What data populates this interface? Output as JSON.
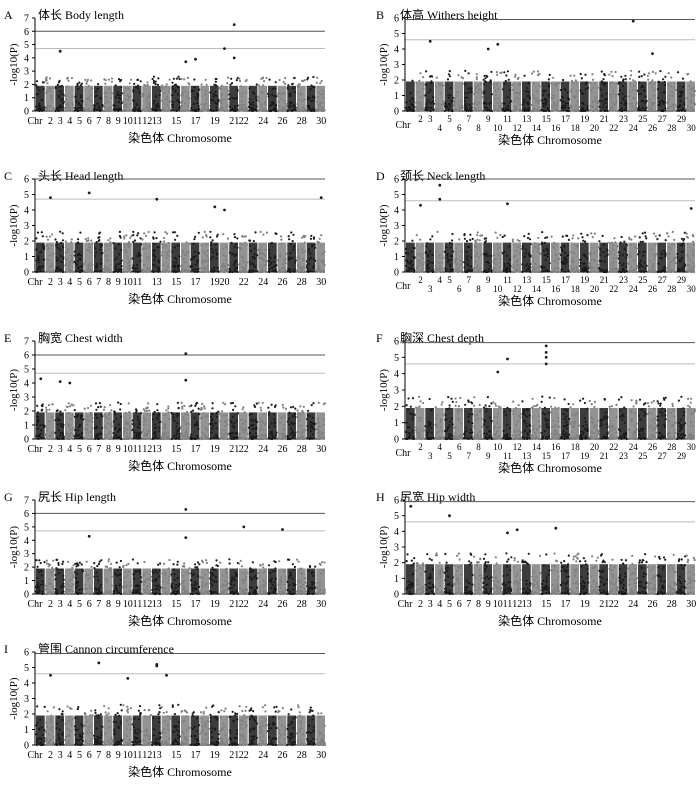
{
  "chart_data": [
    {
      "panel": "A",
      "type": "scatter",
      "title": "体长 Body length",
      "ylabel": "-log10(P)",
      "xlabel": "染色体 Chromosome",
      "ylim": [
        0,
        7
      ],
      "yticks": [
        0,
        1,
        2,
        3,
        4,
        5,
        6,
        7
      ],
      "thresholds": [
        6.0,
        4.7
      ],
      "xticks": [
        "Chr",
        "2",
        "3",
        "4",
        "5",
        "6",
        "7",
        "8",
        "9",
        "10",
        "11",
        "12",
        "13",
        "15",
        "17",
        "19",
        "21",
        "22",
        "24",
        "26",
        "28",
        "30"
      ],
      "peaks": [
        [
          21,
          6.5
        ],
        [
          20,
          4.7
        ],
        [
          3,
          4.5
        ],
        [
          21,
          4.0
        ],
        [
          17,
          3.9
        ],
        [
          16,
          3.7
        ]
      ]
    },
    {
      "panel": "B",
      "type": "scatter",
      "title": "体高 Withers height",
      "ylabel": "-log10(P)",
      "xlabel": "染色体 Chromosome",
      "ylim": [
        0,
        6
      ],
      "yticks": [
        0,
        1,
        2,
        3,
        4,
        5,
        6
      ],
      "thresholds": [
        5.9,
        4.6
      ],
      "xticks": [
        "Chr",
        "2",
        "3",
        "5",
        "7",
        "9",
        "11",
        "13",
        "15",
        "17",
        "19",
        "21",
        "23",
        "25",
        "27",
        "29",
        "4",
        "6",
        "8",
        "10",
        "12",
        "14",
        "16",
        "18",
        "20",
        "22",
        "24",
        "26",
        "28",
        "30"
      ],
      "peaks": [
        [
          24,
          5.8
        ],
        [
          3,
          4.5
        ],
        [
          10,
          4.3
        ],
        [
          9,
          4.0
        ],
        [
          26,
          3.7
        ]
      ]
    },
    {
      "panel": "C",
      "type": "scatter",
      "title": "头长 Head length",
      "ylabel": "-log10(P)",
      "xlabel": "染色体 Chromosome",
      "ylim": [
        0,
        6
      ],
      "yticks": [
        0,
        1,
        2,
        3,
        4,
        5,
        6
      ],
      "thresholds": [
        6.0,
        4.7
      ],
      "xticks": [
        "Chr",
        "2",
        "3",
        "4",
        "5",
        "6",
        "7",
        "8",
        "9",
        "10",
        "11",
        "13",
        "15",
        "17",
        "19",
        "20",
        "22",
        "24",
        "26",
        "28",
        "30"
      ],
      "peaks": [
        [
          6,
          5.1
        ],
        [
          2,
          4.8
        ],
        [
          30,
          4.8
        ],
        [
          13,
          4.7
        ],
        [
          19,
          4.2
        ],
        [
          20,
          4.0
        ]
      ]
    },
    {
      "panel": "D",
      "type": "scatter",
      "title": "颈长 Neck length",
      "ylabel": "-log10(P)",
      "xlabel": "染色体 Chromosome",
      "ylim": [
        0,
        6
      ],
      "yticks": [
        0,
        1,
        2,
        3,
        4,
        5,
        6
      ],
      "thresholds": [
        6.0,
        4.6
      ],
      "xticks": [
        "Chr",
        "2",
        "4",
        "5",
        "7",
        "9",
        "11",
        "13",
        "15",
        "17",
        "19",
        "21",
        "23",
        "25",
        "27",
        "29",
        "3",
        "6",
        "8",
        "10",
        "12",
        "14",
        "16",
        "18",
        "20",
        "22",
        "24",
        "26",
        "28",
        "30"
      ],
      "peaks": [
        [
          4,
          5.6
        ],
        [
          4,
          4.7
        ],
        [
          11,
          4.4
        ],
        [
          2,
          4.3
        ],
        [
          30,
          4.1
        ]
      ]
    },
    {
      "panel": "E",
      "type": "scatter",
      "title": "胸宽 Chest width",
      "ylabel": "-log10(P)",
      "xlabel": "染色体 Chromosome",
      "ylim": [
        0,
        7
      ],
      "yticks": [
        0,
        1,
        2,
        3,
        4,
        5,
        6,
        7
      ],
      "thresholds": [
        6.0,
        4.7
      ],
      "xticks": [
        "Chr",
        "2",
        "3",
        "4",
        "5",
        "6",
        "7",
        "8",
        "9",
        "10",
        "11",
        "12",
        "13",
        "15",
        "17",
        "19",
        "21",
        "22",
        "24",
        "26",
        "28",
        "30"
      ],
      "peaks": [
        [
          16,
          6.1
        ],
        [
          1,
          4.3
        ],
        [
          16,
          4.2
        ],
        [
          3,
          4.1
        ],
        [
          4,
          4.0
        ]
      ]
    },
    {
      "panel": "F",
      "type": "scatter",
      "title": "胸深 Chest depth",
      "ylabel": "-log10(P)",
      "xlabel": "染色体 Chromosome",
      "ylim": [
        0,
        6
      ],
      "yticks": [
        0,
        1,
        2,
        3,
        4,
        5,
        6
      ],
      "thresholds": [
        5.9,
        4.6
      ],
      "xticks": [
        "Chr",
        "2",
        "4",
        "6",
        "8",
        "10",
        "12",
        "14",
        "16",
        "18",
        "20",
        "22",
        "24",
        "26",
        "28",
        "30",
        "3",
        "5",
        "7",
        "9",
        "11",
        "13",
        "15",
        "17",
        "19",
        "21",
        "23",
        "25",
        "27",
        "29"
      ],
      "peaks": [
        [
          15,
          5.7
        ],
        [
          15,
          5.3
        ],
        [
          15,
          5.0
        ],
        [
          11,
          4.9
        ],
        [
          15,
          4.6
        ],
        [
          10,
          4.1
        ]
      ]
    },
    {
      "panel": "G",
      "type": "scatter",
      "title": "尻长 Hip length",
      "ylabel": "-log10(P)",
      "xlabel": "染色体 Chromosome",
      "ylim": [
        0,
        7
      ],
      "yticks": [
        0,
        1,
        2,
        3,
        4,
        5,
        6,
        7
      ],
      "thresholds": [
        6.0,
        4.7
      ],
      "xticks": [
        "Chr",
        "2",
        "3",
        "4",
        "5",
        "6",
        "7",
        "8",
        "9",
        "10",
        "11",
        "12",
        "13",
        "15",
        "17",
        "19",
        "21",
        "22",
        "24",
        "26",
        "28",
        "30"
      ],
      "peaks": [
        [
          16,
          6.3
        ],
        [
          22,
          5.0
        ],
        [
          26,
          4.8
        ],
        [
          6,
          4.3
        ],
        [
          16,
          4.2
        ]
      ]
    },
    {
      "panel": "H",
      "type": "scatter",
      "title": "尻宽 Hip width",
      "ylabel": "-log10(P)",
      "xlabel": "染色体 Chromosome",
      "ylim": [
        0,
        6
      ],
      "yticks": [
        0,
        1,
        2,
        3,
        4,
        5,
        6
      ],
      "thresholds": [
        5.9,
        4.6
      ],
      "xticks": [
        "Chr",
        "2",
        "3",
        "4",
        "5",
        "6",
        "7",
        "8",
        "9",
        "10",
        "11",
        "12",
        "13",
        "15",
        "17",
        "19",
        "21",
        "22",
        "24",
        "26",
        "28",
        "30"
      ],
      "peaks": [
        [
          1,
          5.6
        ],
        [
          5,
          5.0
        ],
        [
          16,
          4.2
        ],
        [
          12,
          4.1
        ],
        [
          11,
          3.9
        ]
      ]
    },
    {
      "panel": "I",
      "type": "scatter",
      "title": "管围 Cannon circumference",
      "ylabel": "-log10(P)",
      "xlabel": "染色体 Chromosome",
      "ylim": [
        0,
        6
      ],
      "yticks": [
        0,
        1,
        2,
        3,
        4,
        5,
        6
      ],
      "thresholds": [
        5.9,
        4.6
      ],
      "xticks": [
        "Chr",
        "2",
        "3",
        "4",
        "5",
        "6",
        "7",
        "8",
        "9",
        "10",
        "11",
        "12",
        "13",
        "15",
        "17",
        "19",
        "21",
        "22",
        "24",
        "26",
        "28",
        "30"
      ],
      "peaks": [
        [
          7,
          5.3
        ],
        [
          13,
          5.2
        ],
        [
          13,
          5.1
        ],
        [
          2,
          4.5
        ],
        [
          14,
          4.5
        ],
        [
          10,
          4.3
        ]
      ]
    }
  ]
}
